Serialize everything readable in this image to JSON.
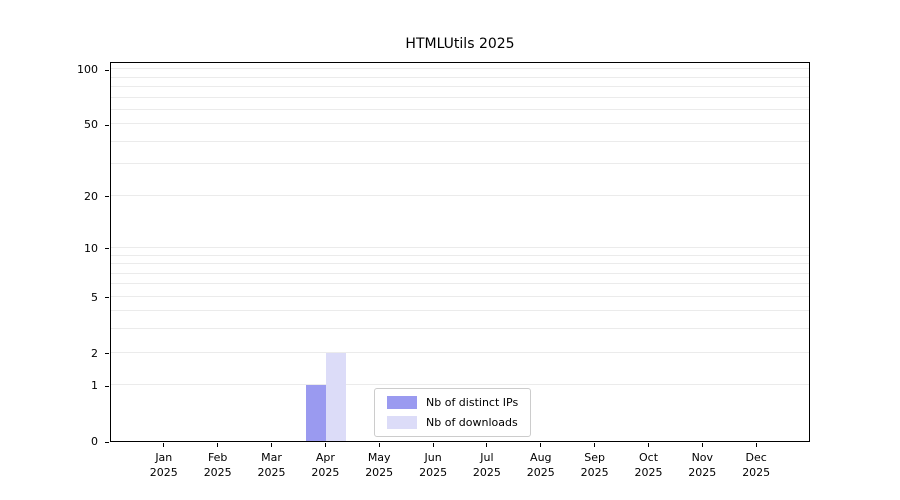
{
  "chart_data": {
    "type": "bar",
    "title": "HTMLUtils 2025",
    "categories": [
      "Jan",
      "Feb",
      "Mar",
      "Apr",
      "May",
      "Jun",
      "Jul",
      "Aug",
      "Sep",
      "Oct",
      "Nov",
      "Dec"
    ],
    "year": "2025",
    "series": [
      {
        "name": "Nb of distinct IPs",
        "color": "#9a9af0",
        "values": [
          0,
          0,
          0,
          1,
          0,
          0,
          0,
          0,
          0,
          0,
          0,
          0
        ]
      },
      {
        "name": "Nb of downloads",
        "color": "#dcdcf8",
        "values": [
          0,
          0,
          0,
          2,
          0,
          0,
          0,
          0,
          0,
          0,
          0,
          0
        ]
      }
    ],
    "y_ticks": [
      0,
      1,
      2,
      5,
      10,
      20,
      50,
      100
    ],
    "grid_values": [
      1,
      2,
      3,
      4,
      5,
      6,
      7,
      8,
      9,
      10,
      20,
      30,
      40,
      50,
      60,
      70,
      80,
      90,
      100
    ],
    "scale": "log1p",
    "ylim": [
      0,
      111
    ],
    "grid": true,
    "legend_position": "lower center"
  }
}
